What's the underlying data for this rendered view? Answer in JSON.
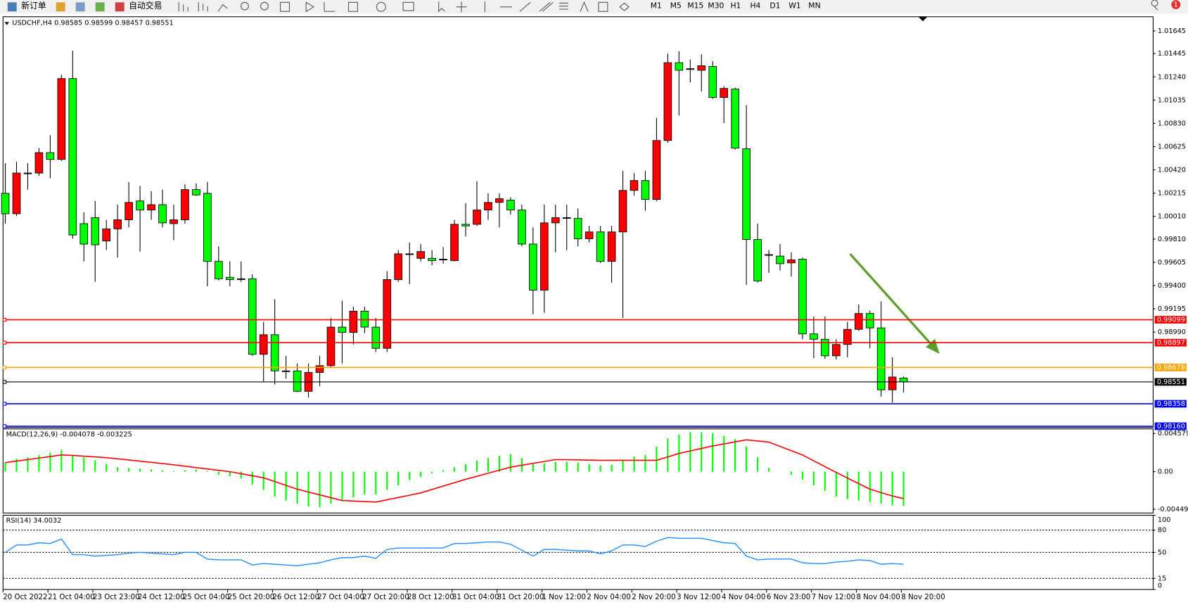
{
  "toolbar": {
    "new_order": "新订单",
    "auto_trading": "自动交易",
    "timeframes": [
      "M1",
      "M5",
      "M15",
      "M30",
      "H1",
      "H4",
      "D1",
      "W1",
      "MN"
    ],
    "badge": "1"
  },
  "chart_data": [
    {
      "type": "candlestick",
      "title": "USDCHF,H4  0.98585 0.98599 0.98457 0.98551",
      "categories": [
        "20 Oct 2022",
        null,
        null,
        null,
        "21 Oct 04:00",
        null,
        null,
        null,
        "23 Oct 23:00",
        null,
        null,
        null,
        "24 Oct 12:00",
        null,
        null,
        null,
        "25 Oct 04:00",
        null,
        null,
        null,
        "25 Oct 20:00",
        null,
        null,
        null,
        "26 Oct 12:00",
        null,
        null,
        null,
        "27 Oct 04:00",
        null,
        null,
        null,
        "27 Oct 20:00",
        null,
        null,
        null,
        "28 Oct 12:00",
        null,
        null,
        null,
        "31 Oct 04:00",
        null,
        null,
        null,
        "31 Oct 20:00",
        null,
        null,
        null,
        "1 Nov 12:00",
        null,
        null,
        null,
        "2 Nov 04:00",
        null,
        null,
        null,
        "2 Nov 20:00",
        null,
        null,
        null,
        "3 Nov 12:00",
        null,
        null,
        null,
        "4 Nov 04:00",
        null,
        null,
        null,
        "6 Nov 23:00",
        null,
        null,
        null,
        "7 Nov 12:00",
        null,
        null,
        null,
        "8 Nov 04:00",
        null,
        null,
        null,
        "8 Nov 20:00"
      ],
      "ohlc": [
        [
          1.00213,
          1.00479,
          0.99946,
          1.00033
        ],
        [
          1.00033,
          1.00492,
          1.00013,
          1.00392
        ],
        [
          1.00392,
          1.00479,
          1.00246,
          1.00392
        ],
        [
          1.00392,
          1.00612,
          1.00366,
          1.00572
        ],
        [
          1.00572,
          1.00726,
          1.00346,
          1.00512
        ],
        [
          1.00512,
          1.01258,
          1.00499,
          1.01225
        ],
        [
          1.01225,
          1.01471,
          0.99813,
          0.99846
        ],
        [
          0.99946,
          1.00046,
          0.99613,
          0.99766
        ],
        [
          0.99999,
          1.00146,
          0.99433,
          0.9976
        ],
        [
          0.99793,
          0.9998,
          0.99713,
          0.999
        ],
        [
          0.999,
          1.00113,
          0.99647,
          0.9998
        ],
        [
          0.9998,
          1.00313,
          0.99913,
          1.00133
        ],
        [
          1.00146,
          1.00279,
          0.997,
          1.00066
        ],
        [
          1.00066,
          1.00233,
          0.9998,
          1.00113
        ],
        [
          1.00113,
          1.00246,
          0.99913,
          0.99953
        ],
        [
          0.99946,
          1.00113,
          0.998,
          0.9998
        ],
        [
          0.9998,
          1.00293,
          0.99946,
          1.00246
        ],
        [
          1.00246,
          1.00299,
          1.00193,
          1.00199
        ],
        [
          1.00213,
          1.00313,
          0.99394,
          0.99613
        ],
        [
          0.99613,
          0.99746,
          0.99447,
          0.9946
        ],
        [
          0.99473,
          0.99613,
          0.99394,
          0.99453
        ],
        [
          0.9946,
          0.99613,
          0.99433,
          0.9946
        ],
        [
          0.9946,
          0.995,
          0.98781,
          0.98794
        ],
        [
          0.98794,
          0.9908,
          0.98548,
          0.98967
        ],
        [
          0.98967,
          0.9928,
          0.98528,
          0.98648
        ],
        [
          0.98648,
          0.98781,
          0.98581,
          0.98648
        ],
        [
          0.98648,
          0.98714,
          0.98461,
          0.98468
        ],
        [
          0.98468,
          0.98714,
          0.98414,
          0.98634
        ],
        [
          0.98634,
          0.98781,
          0.98514,
          0.98694
        ],
        [
          0.98694,
          0.99114,
          0.98681,
          0.99034
        ],
        [
          0.99034,
          0.99267,
          0.98714,
          0.98987
        ],
        [
          0.98987,
          0.99214,
          0.98881,
          0.99174
        ],
        [
          0.99174,
          0.99214,
          0.98981,
          0.99034
        ],
        [
          0.99034,
          0.99114,
          0.98814,
          0.98847
        ],
        [
          0.98847,
          0.99527,
          0.98814,
          0.99453
        ],
        [
          0.99453,
          0.99713,
          0.99433,
          0.9968
        ],
        [
          0.9968,
          0.9978,
          0.99413,
          0.9968
        ],
        [
          0.9964,
          0.99766,
          0.99613,
          0.997
        ],
        [
          0.9964,
          0.99713,
          0.9958,
          0.9962
        ],
        [
          0.99633,
          0.9974,
          0.99593,
          0.99627
        ],
        [
          0.9962,
          0.9998,
          0.99613,
          0.9994
        ],
        [
          0.9994,
          1.00126,
          0.99833,
          0.99926
        ],
        [
          0.9994,
          1.00319,
          0.99926,
          1.00066
        ],
        [
          1.00066,
          1.00213,
          0.9998,
          1.00133
        ],
        [
          1.00133,
          1.00213,
          0.99913,
          1.00166
        ],
        [
          1.00153,
          1.00179,
          1.00026,
          1.00066
        ],
        [
          1.00066,
          1.00113,
          0.99746,
          0.99766
        ],
        [
          0.99766,
          0.99913,
          0.99147,
          0.9936
        ],
        [
          0.9936,
          1.00113,
          0.9916,
          0.99953
        ],
        [
          0.99953,
          1.00113,
          0.99693,
          0.99999
        ],
        [
          0.99999,
          1.00113,
          0.99713,
          0.99999
        ],
        [
          0.99993,
          1.0008,
          0.99746,
          0.99813
        ],
        [
          0.99813,
          0.99926,
          0.9978,
          0.99873
        ],
        [
          0.99873,
          0.99926,
          0.996,
          0.99613
        ],
        [
          0.99613,
          0.99926,
          0.99427,
          0.99873
        ],
        [
          0.99873,
          1.00412,
          0.99114,
          1.00239
        ],
        [
          1.00239,
          1.00392,
          1.00193,
          1.00326
        ],
        [
          1.00326,
          1.00412,
          1.0006,
          1.00159
        ],
        [
          1.00159,
          1.00879,
          1.00146,
          1.00679
        ],
        [
          1.00679,
          1.01445,
          1.00659,
          1.01365
        ],
        [
          1.01365,
          1.01465,
          1.00899,
          1.01298
        ],
        [
          1.01312,
          1.01392,
          1.01192,
          1.01312
        ],
        [
          1.01298,
          1.01438,
          1.01112,
          1.01338
        ],
        [
          1.01332,
          1.01378,
          1.01045,
          1.01058
        ],
        [
          1.01058,
          1.01158,
          1.00832,
          1.01138
        ],
        [
          1.01132,
          1.01145,
          1.00599,
          1.00612
        ],
        [
          1.00606,
          1.00992,
          0.99407,
          0.99806
        ],
        [
          0.99806,
          0.99946,
          0.99427,
          0.9944
        ],
        [
          0.99673,
          0.99713,
          0.99513,
          0.99673
        ],
        [
          0.9966,
          0.99766,
          0.99533,
          0.99593
        ],
        [
          0.996,
          0.99693,
          0.9948,
          0.99627
        ],
        [
          0.99633,
          0.99647,
          0.98927,
          0.98974
        ],
        [
          0.98974,
          0.99127,
          0.98761,
          0.98927
        ],
        [
          0.98927,
          0.99127,
          0.98754,
          0.98781
        ],
        [
          0.98781,
          0.98927,
          0.98748,
          0.98881
        ],
        [
          0.98881,
          0.9908,
          0.98768,
          0.99014
        ],
        [
          0.99014,
          0.99234,
          0.99001,
          0.99154
        ],
        [
          0.99154,
          0.9918,
          0.98847,
          0.99027
        ],
        [
          0.99027,
          0.9926,
          0.98421,
          0.98481
        ],
        [
          0.98481,
          0.98768,
          0.98368,
          0.98594
        ],
        [
          0.98585,
          0.98599,
          0.98457,
          0.98551
        ]
      ],
      "up_color": "#ff0000",
      "down_color": "#00ff00",
      "ylim": [
        0.9815,
        1.0177
      ],
      "yticks": [
        1.01645,
        1.01445,
        {
          "value": 1.0124,
          "label": "1.01240"
        },
        1.01035,
        {
          "value": 1.0083,
          "label": "1.00830"
        },
        1.00625,
        {
          "value": 1.0042,
          "label": "1.00420"
        },
        1.00215,
        {
          "value": 1.0001,
          "label": "1.00010"
        },
        {
          "value": 0.9981,
          "label": "0.99810"
        },
        0.99605,
        {
          "value": 0.994,
          "label": "0.99400"
        },
        0.99195,
        {
          "value": 0.9899,
          "label": "0.98990"
        }
      ],
      "levels": [
        {
          "value": 0.99099,
          "color": "#ff0000"
        },
        {
          "value": 0.98897,
          "color": "#ff0000"
        },
        {
          "value": 0.98678,
          "color": "#ffa500"
        },
        {
          "value": 0.98551,
          "color": "#000000"
        },
        {
          "value": 0.98358,
          "color": "#0000ff"
        },
        {
          "value": 0.9816,
          "label": "0.98160",
          "color": "#0000ff"
        }
      ]
    },
    {
      "type": "macd",
      "title": "MACD(12,26,9) -0.004078 -0.003225",
      "ylim": [
        -0.00494,
        0.00512
      ],
      "yticks": [
        0.004579,
        {
          "value": 0,
          "label": "0.00"
        },
        -0.004491
      ],
      "series": [
        {
          "style": "histogram",
          "color": "#00ff00",
          "values": [
            0.00109,
            0.00154,
            0.00172,
            0.002,
            0.00227,
            0.00263,
            0.002,
            0.00172,
            0.00136,
            0.00091,
            0.00054,
            0.00045,
            0.00036,
            0.00027,
            0.00018,
            9e-05,
            0.00018,
            0.00027,
            9e-05,
            -0.00036,
            -0.00054,
            -0.00082,
            -0.00154,
            -0.00218,
            -0.00299,
            -0.00345,
            -0.00381,
            -0.00417,
            -0.00426,
            -0.00381,
            -0.00354,
            -0.00308,
            -0.00272,
            -0.00272,
            -0.00218,
            -0.00163,
            -0.001,
            -0.00063,
            -0.00018,
            0.00018,
            0.00054,
            0.00091,
            0.00136,
            0.00163,
            0.0019,
            0.00209,
            0.00163,
            0.00091,
            0.001,
            0.00118,
            0.00118,
            0.00109,
            0.00091,
            0.00073,
            0.00082,
            0.00136,
            0.00181,
            0.002,
            0.00299,
            0.00399,
            0.00444,
            0.00472,
            0.00472,
            0.00463,
            0.00426,
            0.0039,
            0.00299,
            0.00172,
            0.00045,
            0,
            -0.00036,
            -0.00091,
            -0.00163,
            -0.00227,
            -0.00299,
            -0.00327,
            -0.00345,
            -0.00363,
            -0.00381,
            -0.004,
            -0.004078
          ]
        },
        {
          "style": "line",
          "color": "#ff0000",
          "values": [
            0.00109,
            0.00127,
            0.00145,
            0.00163,
            0.00181,
            0.002,
            0.00195,
            0.00186,
            0.00177,
            0.00168,
            0.00154,
            0.0014,
            0.00126,
            0.00112,
            0.00097,
            0.00082,
            0.00066,
            0.00049,
            0.00033,
            0.00016,
            0,
            -0.00024,
            -0.00049,
            -0.00073,
            -0.00118,
            -0.00164,
            -0.00209,
            -0.00243,
            -0.00277,
            -0.00311,
            -0.00345,
            -0.00351,
            -0.00357,
            -0.00363,
            -0.00336,
            -0.00309,
            -0.00282,
            -0.00254,
            -0.00213,
            -0.00172,
            -0.00132,
            -0.00091,
            -0.00055,
            -0.00018,
            0.00018,
            0.00054,
            0.00077,
            0.001,
            0.00122,
            0.00145,
            0.00143,
            0.00141,
            0.00138,
            0.00136,
            0.00136,
            0.00136,
            0.00136,
            0.00136,
            0.00136,
            0.00177,
            0.00218,
            0.00248,
            0.00278,
            0.00308,
            0.00332,
            0.00357,
            0.00381,
            0.00368,
            0.00354,
            0.00303,
            0.00251,
            0.002,
            0.0013,
            0.00061,
            -9e-05,
            -0.00076,
            -0.00142,
            -0.00209,
            -0.0025,
            -0.0029,
            -0.003225
          ]
        }
      ]
    },
    {
      "type": "line",
      "title": "RSI(14) 34.0032",
      "color": "#1e90ff",
      "ylim": [
        0,
        100
      ],
      "yticks": [
        0,
        15,
        50,
        80,
        100
      ],
      "levels": [
        15,
        50,
        80
      ],
      "values": [
        50,
        60,
        60,
        63,
        62,
        68,
        47,
        47,
        45,
        46,
        47,
        49,
        50,
        49,
        48,
        47,
        50,
        50,
        41,
        40,
        40,
        40,
        33,
        35,
        34,
        33,
        32,
        34,
        36,
        40,
        43,
        43,
        45,
        42,
        54,
        56,
        56,
        56,
        56,
        56,
        62,
        62,
        63,
        64,
        64,
        61,
        53,
        45,
        54,
        54,
        53,
        52,
        52,
        48,
        52,
        60,
        60,
        58,
        65,
        70,
        69,
        69,
        69,
        66,
        63,
        62,
        45,
        40,
        41,
        41,
        41,
        36,
        35,
        35,
        37,
        38,
        40,
        39,
        34,
        35,
        34.0032
      ]
    }
  ]
}
